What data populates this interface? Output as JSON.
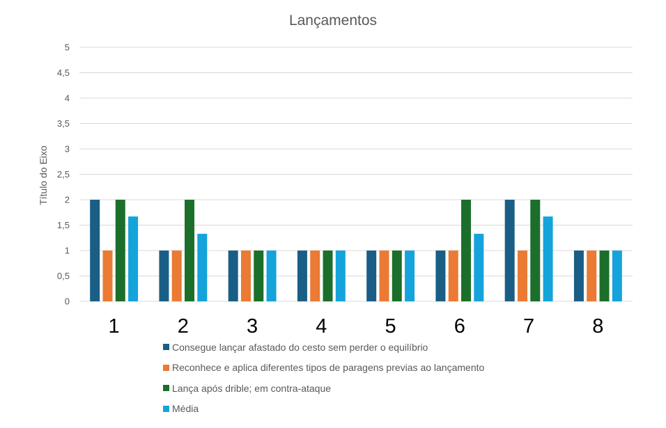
{
  "chart_data": {
    "type": "bar",
    "title": "Lançamentos",
    "xlabel": "",
    "ylabel": "Título do Eixo",
    "ylim": [
      0,
      5
    ],
    "y_ticks": [
      "0",
      "0,5",
      "1",
      "1,5",
      "2",
      "2,5",
      "3",
      "3,5",
      "4",
      "4,5",
      "5"
    ],
    "categories": [
      "1",
      "2",
      "3",
      "4",
      "5",
      "6",
      "7",
      "8"
    ],
    "grid": true,
    "legend_position": "bottom",
    "series": [
      {
        "name": "Consegue lançar afastado do cesto sem perder o equilíbrio",
        "color": "#1a5e86",
        "values": [
          2,
          1,
          1,
          1,
          1,
          1,
          2,
          1
        ]
      },
      {
        "name": "Reconhece e aplica diferentes tipos de paragens previas ao lançamento",
        "color": "#ea7a34",
        "values": [
          1,
          1,
          1,
          1,
          1,
          1,
          1,
          1
        ]
      },
      {
        "name": "Lança após drible; em contra-ataque",
        "color": "#1c6f2a",
        "values": [
          2,
          2,
          1,
          1,
          1,
          2,
          2,
          1
        ]
      },
      {
        "name": "Média",
        "color": "#15a3db",
        "values": [
          1.67,
          1.33,
          1,
          1,
          1,
          1.33,
          1.67,
          1
        ]
      }
    ]
  }
}
